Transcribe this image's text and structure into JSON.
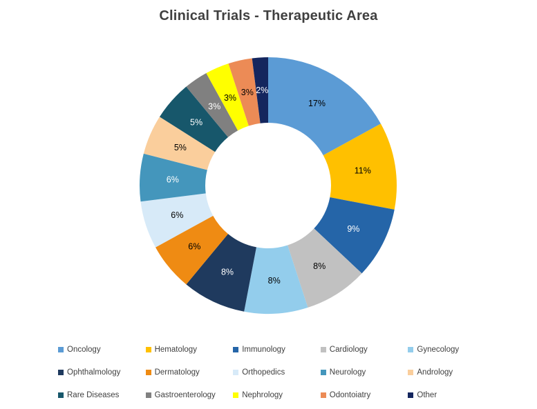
{
  "title": "Clinical Trials - Therapeutic Area",
  "chart_data": {
    "type": "pie",
    "subtype": "donut",
    "title": "Clinical Trials - Therapeutic Area",
    "unit": "%",
    "start_angle_deg": 0,
    "direction": "clockwise",
    "inner_radius_ratio": 0.49,
    "legend_position": "bottom",
    "legend_columns": 5,
    "segments": [
      {
        "label": "Oncology",
        "value": 17,
        "color": "#5B9BD5",
        "label_color": "#000000"
      },
      {
        "label": "Hematology",
        "value": 11,
        "color": "#FFC000",
        "label_color": "#000000"
      },
      {
        "label": "Immunology",
        "value": 9,
        "color": "#2565A8",
        "label_color": "#FFFFFF"
      },
      {
        "label": "Cardiology",
        "value": 8,
        "color": "#C1C1C1",
        "label_color": "#000000"
      },
      {
        "label": "Gynecology",
        "value": 8,
        "color": "#93CDEC",
        "label_color": "#000000"
      },
      {
        "label": "Ophthalmology",
        "value": 8,
        "color": "#1F3A5E",
        "label_color": "#FFFFFF"
      },
      {
        "label": "Dermatology",
        "value": 6,
        "color": "#EF8B13",
        "label_color": "#000000"
      },
      {
        "label": "Orthopedics",
        "value": 6,
        "color": "#D7EAF8",
        "label_color": "#000000"
      },
      {
        "label": "Neurology",
        "value": 6,
        "color": "#4496BC",
        "label_color": "#FFFFFF"
      },
      {
        "label": "Andrology",
        "value": 5,
        "color": "#FACE9C",
        "label_color": "#000000"
      },
      {
        "label": "Rare Diseases",
        "value": 5,
        "color": "#17576B",
        "label_color": "#FFFFFF"
      },
      {
        "label": "Gastroenterology",
        "value": 3,
        "color": "#808080",
        "label_color": "#FFFFFF"
      },
      {
        "label": "Nephrology",
        "value": 3,
        "color": "#FFFF00",
        "label_color": "#000000"
      },
      {
        "label": "Odontoiatry",
        "value": 3,
        "color": "#EC8B56",
        "label_color": "#000000"
      },
      {
        "label": "Other",
        "value": 2,
        "color": "#14265E",
        "label_color": "#FFFFFF"
      }
    ]
  }
}
